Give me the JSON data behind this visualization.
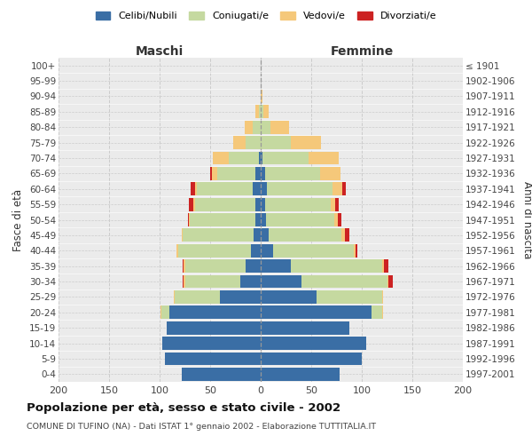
{
  "age_groups": [
    "0-4",
    "5-9",
    "10-14",
    "15-19",
    "20-24",
    "25-29",
    "30-34",
    "35-39",
    "40-44",
    "45-49",
    "50-54",
    "55-59",
    "60-64",
    "65-69",
    "70-74",
    "75-79",
    "80-84",
    "85-89",
    "90-94",
    "95-99",
    "100+"
  ],
  "birth_years": [
    "1997-2001",
    "1992-1996",
    "1987-1991",
    "1982-1986",
    "1977-1981",
    "1972-1976",
    "1967-1971",
    "1962-1966",
    "1957-1961",
    "1952-1956",
    "1947-1951",
    "1942-1946",
    "1937-1941",
    "1932-1936",
    "1927-1931",
    "1922-1926",
    "1917-1921",
    "1912-1916",
    "1907-1911",
    "1902-1906",
    "≤ 1901"
  ],
  "male": {
    "celibi": [
      78,
      95,
      97,
      93,
      90,
      40,
      20,
      15,
      10,
      7,
      5,
      5,
      8,
      5,
      2,
      0,
      0,
      0,
      0,
      0,
      0
    ],
    "coniugati": [
      0,
      0,
      0,
      0,
      8,
      45,
      55,
      60,
      72,
      70,
      65,
      60,
      55,
      38,
      30,
      15,
      8,
      2,
      0,
      0,
      0
    ],
    "vedovi": [
      0,
      0,
      0,
      0,
      1,
      1,
      1,
      1,
      1,
      1,
      1,
      2,
      2,
      5,
      15,
      12,
      8,
      3,
      0,
      0,
      0
    ],
    "divorziati": [
      0,
      0,
      0,
      0,
      0,
      0,
      1,
      1,
      0,
      0,
      1,
      4,
      4,
      2,
      0,
      0,
      0,
      0,
      0,
      0,
      0
    ]
  },
  "female": {
    "nubili": [
      78,
      100,
      104,
      88,
      110,
      55,
      40,
      30,
      12,
      8,
      5,
      4,
      6,
      4,
      2,
      0,
      0,
      0,
      0,
      0,
      0
    ],
    "coniugate": [
      0,
      0,
      0,
      0,
      10,
      65,
      85,
      90,
      80,
      72,
      68,
      65,
      65,
      55,
      45,
      30,
      10,
      3,
      0,
      0,
      0
    ],
    "vedove": [
      0,
      0,
      0,
      0,
      1,
      1,
      1,
      2,
      2,
      3,
      3,
      5,
      10,
      20,
      30,
      30,
      18,
      5,
      2,
      0,
      0
    ],
    "divorziate": [
      0,
      0,
      0,
      0,
      0,
      0,
      5,
      4,
      2,
      5,
      4,
      3,
      3,
      0,
      0,
      0,
      0,
      0,
      0,
      0,
      0
    ]
  },
  "colors": {
    "celibi": "#3a6ea5",
    "coniugati": "#c5d9a0",
    "vedovi": "#f5c87a",
    "divorziati": "#cc2222"
  },
  "xlim": 200,
  "title": "Popolazione per età, sesso e stato civile - 2002",
  "subtitle": "COMUNE DI TUFINO (NA) - Dati ISTAT 1° gennaio 2002 - Elaborazione TUTTITALIA.IT",
  "ylabel_left": "Fasce di età",
  "ylabel_right": "Anni di nascita",
  "xlabel_maschi": "Maschi",
  "xlabel_femmine": "Femmine",
  "legend_labels": [
    "Celibi/Nubili",
    "Coniugati/e",
    "Vedovi/e",
    "Divorziati/e"
  ],
  "bg_color": "#ffffff",
  "plot_bg_color": "#ebebeb",
  "grid_color": "#cccccc"
}
